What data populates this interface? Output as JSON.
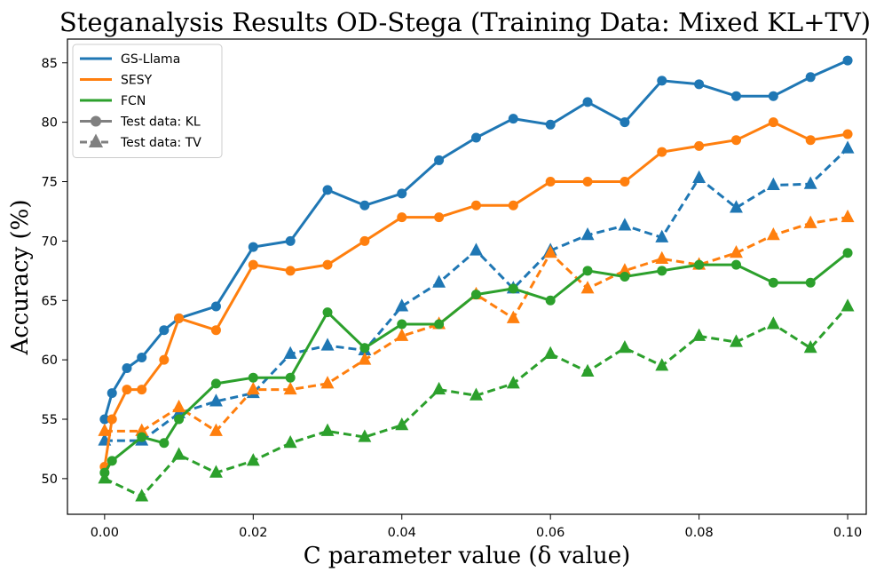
{
  "chart_data": {
    "type": "line",
    "title": "Steganalysis Results OD-Stega (Training Data: Mixed KL+TV)",
    "xlabel": "C parameter value (δ value)",
    "ylabel": "Accuracy (%)",
    "xlim": [
      -0.005,
      0.1025
    ],
    "ylim": [
      47,
      87
    ],
    "xticks": [
      0.0,
      0.02,
      0.04,
      0.06,
      0.08,
      0.1
    ],
    "xtick_labels": [
      "0.00",
      "0.02",
      "0.04",
      "0.06",
      "0.08",
      "0.10"
    ],
    "yticks": [
      50,
      55,
      60,
      65,
      70,
      75,
      80,
      85
    ],
    "ytick_labels": [
      "50",
      "55",
      "60",
      "65",
      "70",
      "75",
      "80",
      "85"
    ],
    "grid": false,
    "legend": {
      "placement": "top-left",
      "entries": [
        {
          "label": "GS-Llama",
          "color": "#1f77b4",
          "style": "solid"
        },
        {
          "label": "SESY",
          "color": "#ff7f0e",
          "style": "solid"
        },
        {
          "label": "FCN",
          "color": "#2ca02c",
          "style": "solid"
        },
        {
          "label": "Test data: KL",
          "color": "#808080",
          "style": "solid",
          "marker": "circle"
        },
        {
          "label": "Test data: TV",
          "color": "#808080",
          "style": "dashed",
          "marker": "triangle"
        }
      ]
    },
    "x": [
      0.0,
      0.001,
      0.003,
      0.005,
      0.008,
      0.01,
      0.015,
      0.02,
      0.025,
      0.03,
      0.035,
      0.04,
      0.045,
      0.05,
      0.055,
      0.06,
      0.065,
      0.07,
      0.075,
      0.08,
      0.085,
      0.09,
      0.095,
      0.1
    ],
    "series": [
      {
        "name": "GS-Llama (Test data: KL)",
        "color": "#1f77b4",
        "dash": false,
        "marker": "circle",
        "values": [
          55.0,
          57.2,
          59.3,
          60.2,
          62.5,
          63.5,
          64.5,
          69.5,
          70.0,
          74.3,
          73.0,
          74.0,
          76.8,
          78.7,
          80.3,
          79.8,
          81.7,
          80.0,
          83.5,
          83.2,
          82.2,
          82.2,
          83.8,
          85.2
        ]
      },
      {
        "name": "GS-Llama (Test data: TV)",
        "color": "#1f77b4",
        "dash": true,
        "marker": "triangle",
        "values": [
          53.2,
          null,
          null,
          53.2,
          null,
          55.5,
          56.5,
          57.2,
          60.5,
          61.2,
          60.8,
          64.5,
          66.5,
          69.2,
          66.0,
          69.2,
          70.5,
          71.3,
          70.3,
          75.3,
          72.8,
          74.7,
          74.8,
          77.8
        ]
      },
      {
        "name": "SESY (Test data: KL)",
        "color": "#ff7f0e",
        "dash": false,
        "marker": "circle",
        "values": [
          51.0,
          55.0,
          57.5,
          57.5,
          60.0,
          63.5,
          62.5,
          68.0,
          67.5,
          68.0,
          70.0,
          72.0,
          72.0,
          73.0,
          73.0,
          75.0,
          75.0,
          75.0,
          77.5,
          78.0,
          78.5,
          80.0,
          78.5,
          79.0
        ]
      },
      {
        "name": "SESY (Test data: TV)",
        "color": "#ff7f0e",
        "dash": true,
        "marker": "triangle",
        "values": [
          54.0,
          null,
          null,
          54.0,
          null,
          56.0,
          54.0,
          57.5,
          57.5,
          58.0,
          60.0,
          62.0,
          63.0,
          65.5,
          63.5,
          69.0,
          66.0,
          67.5,
          68.5,
          68.0,
          69.0,
          70.5,
          71.5,
          72.0
        ]
      },
      {
        "name": "FCN (Test data: KL)",
        "color": "#2ca02c",
        "dash": false,
        "marker": "circle",
        "values": [
          50.5,
          51.5,
          null,
          53.5,
          53.0,
          55.0,
          58.0,
          58.5,
          58.5,
          64.0,
          61.0,
          63.0,
          63.0,
          65.5,
          66.0,
          65.0,
          67.5,
          67.0,
          67.5,
          68.0,
          68.0,
          66.5,
          66.5,
          69.0
        ]
      },
      {
        "name": "FCN (Test data: TV)",
        "color": "#2ca02c",
        "dash": true,
        "marker": "triangle",
        "values": [
          50.0,
          null,
          null,
          48.5,
          null,
          52.0,
          50.5,
          51.5,
          53.0,
          54.0,
          53.5,
          54.5,
          57.5,
          57.0,
          58.0,
          60.5,
          59.0,
          61.0,
          59.5,
          62.0,
          61.5,
          63.0,
          61.0,
          64.5
        ]
      }
    ]
  }
}
